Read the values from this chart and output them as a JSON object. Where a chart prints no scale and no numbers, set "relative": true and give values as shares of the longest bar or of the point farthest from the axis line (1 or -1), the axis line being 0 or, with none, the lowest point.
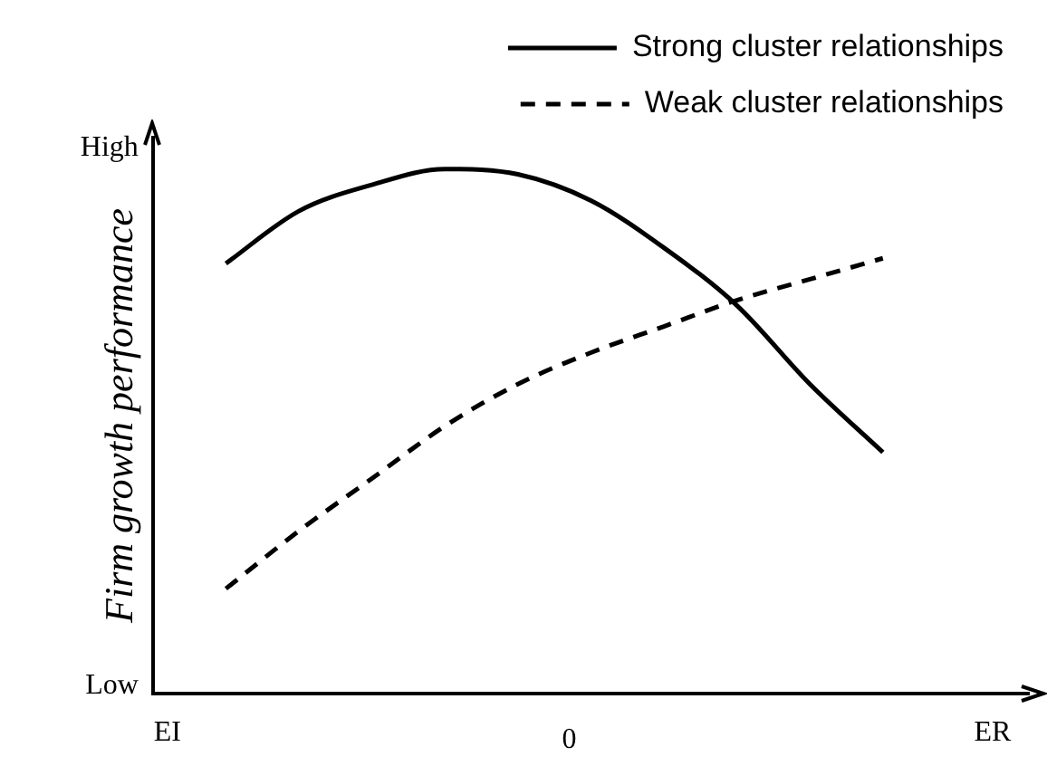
{
  "chart_data": {
    "type": "line",
    "relative": true,
    "ylabel": "Firm growth performance",
    "categories": [
      null,
      null,
      null,
      null,
      null,
      null,
      null,
      null,
      null,
      null,
      null,
      null,
      null
    ],
    "grid": false,
    "legend": "top right",
    "marker": "none",
    "annotations": [
      "High",
      "Low",
      "EI",
      "0",
      "ER"
    ],
    "series": [
      {
        "name": "Strong cluster relationships",
        "color": "#000000",
        "line_style": "solid",
        "values": [
          null,
          0.82,
          0.92,
          0.97,
          1,
          0.99,
          0.94,
          0.85,
          0.74,
          0.59,
          0.46,
          null,
          null
        ]
      },
      {
        "name": "Weak cluster relationships",
        "color": "#000000",
        "line_style": "dashed",
        "values": [
          null,
          0.2,
          0.31,
          0.41,
          0.51,
          0.59,
          0.65,
          0.7,
          0.75,
          0.79,
          0.83,
          null,
          null
        ]
      }
    ]
  }
}
